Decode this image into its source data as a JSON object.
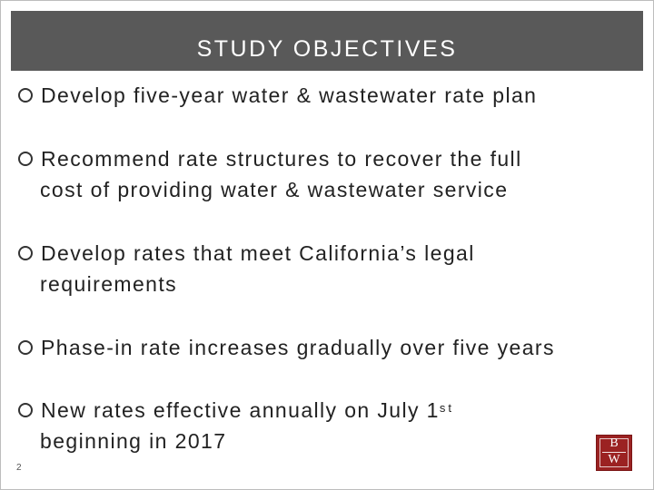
{
  "slide": {
    "title": "STUDY OBJECTIVES",
    "page_number": "2",
    "bullets": [
      {
        "line1": "Develop five-year water & wastewater rate plan",
        "line2": ""
      },
      {
        "line1": "Recommend rate structures to recover the full",
        "line2": "cost of providing water & wastewater service"
      },
      {
        "line1": "Develop rates that meet California’s legal",
        "line2": "requirements"
      },
      {
        "line1": "Phase-in rate increases gradually over five years",
        "line2": ""
      },
      {
        "line1": "New rates effective annually on July 1",
        "line1_sup": "st",
        "line2": "beginning in 2017"
      }
    ],
    "bullet_icon": "hollow-circle-icon",
    "logo": {
      "top": "B",
      "bottom": "W",
      "color": "#9b2222"
    },
    "colors": {
      "title_bar": "#595959",
      "title_text": "#ffffff",
      "body_text": "#222222"
    }
  }
}
